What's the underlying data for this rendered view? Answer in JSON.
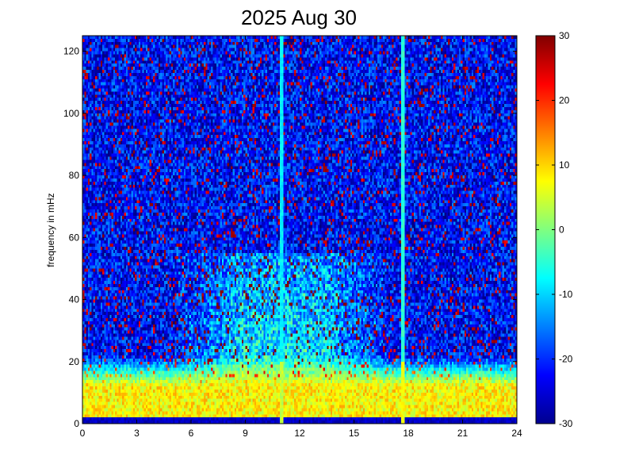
{
  "chart_data": {
    "type": "heatmap",
    "title": "2025 Aug 30",
    "xlabel": "",
    "ylabel": "frequency in mHz",
    "xlim": [
      0,
      24
    ],
    "ylim": [
      0,
      125
    ],
    "xticks": [
      0,
      3,
      6,
      9,
      12,
      15,
      18,
      21,
      24
    ],
    "yticks": [
      0,
      20,
      40,
      60,
      80,
      100,
      120
    ],
    "colorbar": {
      "colormap": "jet",
      "range": [
        -30,
        30
      ],
      "ticks": [
        30,
        20,
        10,
        0,
        -10,
        -20,
        -30
      ]
    },
    "features": {
      "background_level": -22,
      "low_frequency_band": {
        "freq_range": [
          0,
          12
        ],
        "level": 8
      },
      "daytime_enhancement": {
        "time_range": [
          7,
          15
        ],
        "freq_range": [
          0,
          55
        ],
        "level": -5
      },
      "vertical_streaks": [
        {
          "time": 11.0,
          "freq_top": 125,
          "level": -8
        },
        {
          "time": 17.7,
          "freq_top": 125,
          "level": -5
        }
      ]
    }
  }
}
